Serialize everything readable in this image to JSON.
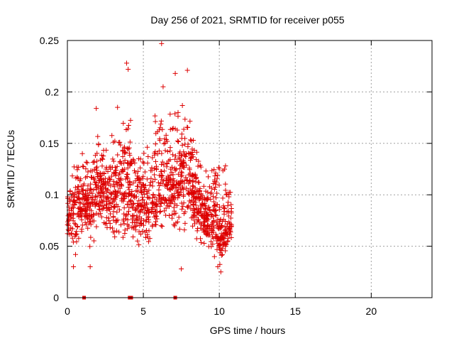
{
  "chart_data": {
    "type": "scatter",
    "title": "Day 256 of 2021, SRMTID for receiver p055",
    "xlabel": "GPS time / hours",
    "ylabel": "SRMTID / TECUs",
    "xlim": [
      0,
      24
    ],
    "ylim": [
      0,
      0.25
    ],
    "xticks": [
      0,
      5,
      10,
      15,
      20
    ],
    "xtick_labels": [
      "0",
      "5",
      "10",
      "15",
      "20"
    ],
    "yticks": [
      0,
      0.05,
      0.1,
      0.15,
      0.2,
      0.25
    ],
    "ytick_labels": [
      "0",
      "0.05",
      "0.1",
      "0.15",
      "0.2",
      "0.25"
    ],
    "grid": true,
    "marker": "plus",
    "series_color": "#dd0000",
    "notable_points": [
      {
        "x": 6.2,
        "y": 0.247
      },
      {
        "x": 3.9,
        "y": 0.228
      },
      {
        "x": 4.0,
        "y": 0.222
      },
      {
        "x": 7.1,
        "y": 0.218
      },
      {
        "x": 7.9,
        "y": 0.221
      },
      {
        "x": 1.9,
        "y": 0.184
      },
      {
        "x": 3.3,
        "y": 0.185
      },
      {
        "x": 6.3,
        "y": 0.205
      },
      {
        "x": 10.1,
        "y": 0.025
      },
      {
        "x": 9.9,
        "y": 0.03
      },
      {
        "x": 0.4,
        "y": 0.03
      },
      {
        "x": 1.5,
        "y": 0.03
      },
      {
        "x": 7.5,
        "y": 0.028
      }
    ],
    "envelope": {
      "x_start": 0.0,
      "x_end": 10.8,
      "upper": [
        [
          0.0,
          0.12
        ],
        [
          0.5,
          0.155
        ],
        [
          1.0,
          0.145
        ],
        [
          1.5,
          0.14
        ],
        [
          2.0,
          0.185
        ],
        [
          2.5,
          0.15
        ],
        [
          3.0,
          0.165
        ],
        [
          3.5,
          0.185
        ],
        [
          4.0,
          0.225
        ],
        [
          4.5,
          0.15
        ],
        [
          5.0,
          0.165
        ],
        [
          5.5,
          0.17
        ],
        [
          6.0,
          0.24
        ],
        [
          6.5,
          0.19
        ],
        [
          7.0,
          0.21
        ],
        [
          7.5,
          0.22
        ],
        [
          8.0,
          0.205
        ],
        [
          8.5,
          0.16
        ],
        [
          9.0,
          0.14
        ],
        [
          9.5,
          0.14
        ],
        [
          10.0,
          0.15
        ],
        [
          10.5,
          0.14
        ],
        [
          10.8,
          0.12
        ]
      ],
      "lower": [
        [
          0.0,
          0.06
        ],
        [
          0.5,
          0.035
        ],
        [
          1.0,
          0.05
        ],
        [
          1.5,
          0.035
        ],
        [
          2.0,
          0.05
        ],
        [
          2.5,
          0.055
        ],
        [
          3.0,
          0.045
        ],
        [
          3.5,
          0.04
        ],
        [
          4.0,
          0.045
        ],
        [
          4.5,
          0.05
        ],
        [
          5.0,
          0.04
        ],
        [
          5.5,
          0.035
        ],
        [
          6.0,
          0.045
        ],
        [
          6.5,
          0.05
        ],
        [
          7.0,
          0.06
        ],
        [
          7.5,
          0.035
        ],
        [
          8.0,
          0.05
        ],
        [
          8.5,
          0.045
        ],
        [
          9.0,
          0.045
        ],
        [
          9.5,
          0.035
        ],
        [
          10.0,
          0.025
        ],
        [
          10.5,
          0.04
        ],
        [
          10.8,
          0.045
        ]
      ],
      "trend": [
        [
          0.0,
          0.075
        ],
        [
          0.5,
          0.085
        ],
        [
          1.0,
          0.09
        ],
        [
          1.5,
          0.09
        ],
        [
          2.0,
          0.11
        ],
        [
          2.5,
          0.1
        ],
        [
          3.0,
          0.1
        ],
        [
          3.5,
          0.1
        ],
        [
          4.0,
          0.11
        ],
        [
          4.5,
          0.095
        ],
        [
          5.0,
          0.09
        ],
        [
          5.5,
          0.09
        ],
        [
          6.0,
          0.11
        ],
        [
          6.5,
          0.12
        ],
        [
          7.0,
          0.11
        ],
        [
          7.5,
          0.12
        ],
        [
          8.0,
          0.12
        ],
        [
          8.5,
          0.09
        ],
        [
          9.0,
          0.08
        ],
        [
          9.5,
          0.075
        ],
        [
          10.0,
          0.06
        ],
        [
          10.5,
          0.065
        ],
        [
          10.8,
          0.07
        ]
      ],
      "point_count": 1400
    },
    "zero_markers": [
      1.1,
      4.1,
      4.2,
      7.1
    ]
  }
}
